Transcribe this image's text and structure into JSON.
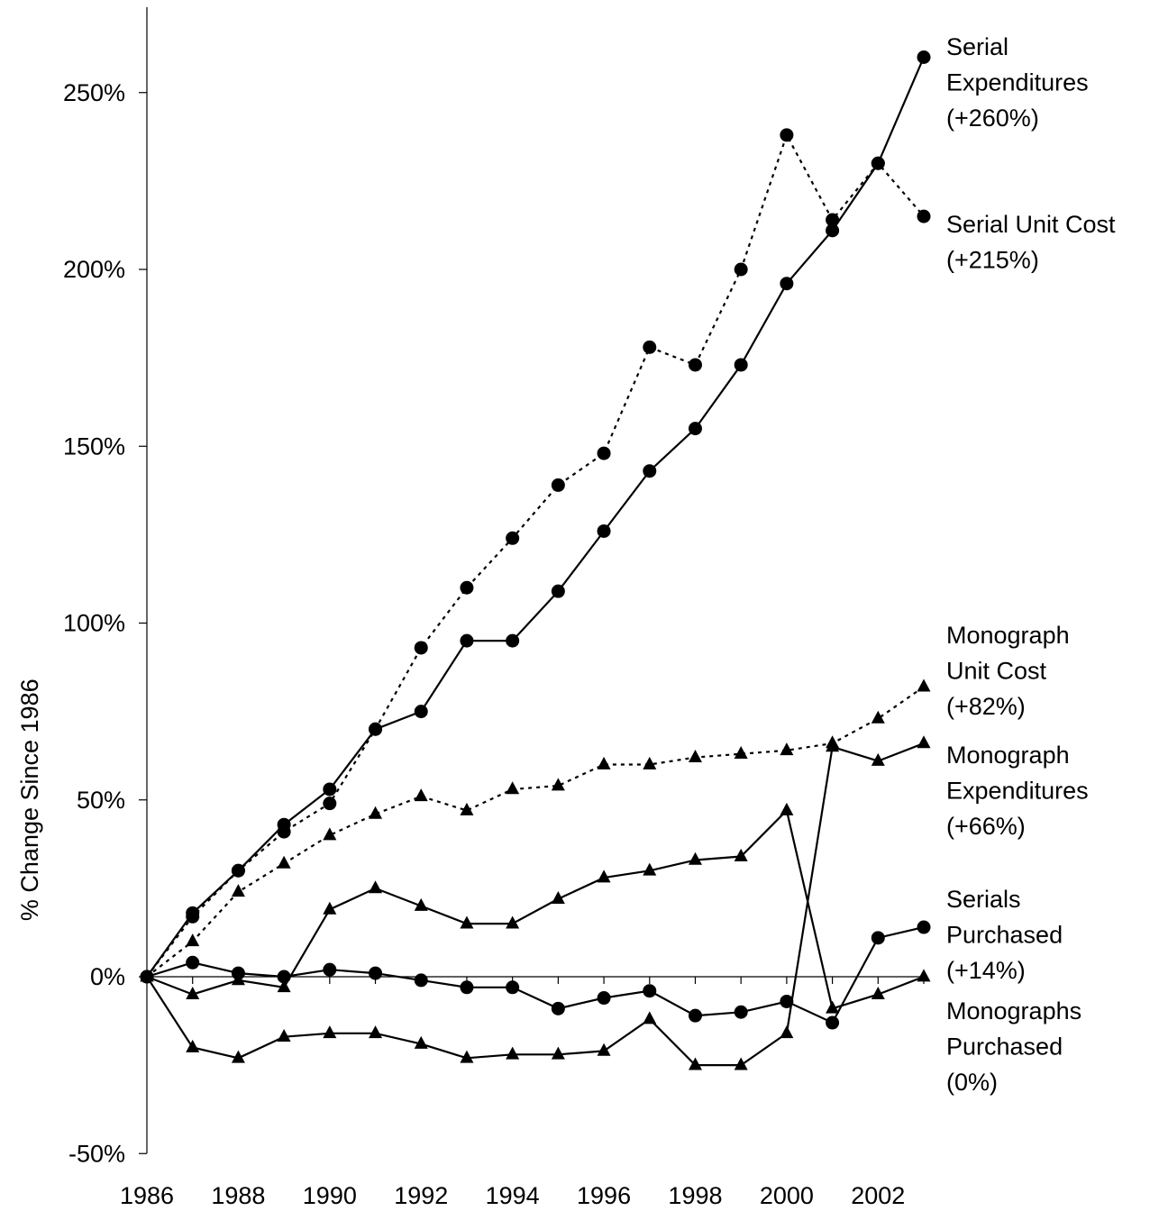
{
  "chart_data": {
    "type": "line",
    "ylabel": "% Change Since 1986",
    "xlabel": "",
    "x": [
      1986,
      1987,
      1988,
      1989,
      1990,
      1991,
      1992,
      1993,
      1994,
      1995,
      1996,
      1997,
      1998,
      1999,
      2000,
      2001,
      2002,
      2003
    ],
    "xlim": [
      1986,
      2003
    ],
    "ylim": [
      -50,
      270
    ],
    "x_ticks": [
      {
        "value": 1986,
        "label": "1986"
      },
      {
        "value": 1988,
        "label": "1988"
      },
      {
        "value": 1990,
        "label": "1990"
      },
      {
        "value": 1992,
        "label": "1992"
      },
      {
        "value": 1994,
        "label": "1994"
      },
      {
        "value": 1996,
        "label": "1996"
      },
      {
        "value": 1998,
        "label": "1998"
      },
      {
        "value": 2000,
        "label": "2000"
      },
      {
        "value": 2002,
        "label": "2002"
      }
    ],
    "y_ticks": [
      {
        "value": 250,
        "label": "250%"
      },
      {
        "value": 200,
        "label": "200%"
      },
      {
        "value": 150,
        "label": "150%"
      },
      {
        "value": 100,
        "label": "100%"
      },
      {
        "value": 50,
        "label": "50%"
      },
      {
        "value": 0,
        "label": "0%"
      },
      {
        "value": -50,
        "label": "-50%"
      }
    ],
    "grid": false,
    "legend": "inline-right",
    "series": [
      {
        "name": "Serial Expenditures (+260%)",
        "label_lines": [
          "Serial",
          "Expenditures",
          "(+260%)"
        ],
        "marker": "circle",
        "line": "solid",
        "label_anchor_value": 260,
        "values": [
          0,
          18,
          30,
          43,
          53,
          70,
          75,
          95,
          95,
          109,
          126,
          143,
          155,
          173,
          196,
          211,
          230,
          260
        ]
      },
      {
        "name": "Serial Unit Cost (+215%)",
        "label_lines": [
          "Serial Unit Cost",
          "(+215%)"
        ],
        "marker": "circle",
        "line": "dotted",
        "label_anchor_value": 215,
        "values": [
          0,
          17,
          30,
          41,
          49,
          70,
          93,
          110,
          124,
          139,
          148,
          178,
          173,
          200,
          238,
          214,
          230,
          215
        ]
      },
      {
        "name": "Monograph Unit Cost (+82%)",
        "label_lines": [
          "Monograph",
          "Unit Cost",
          "(+82%)"
        ],
        "marker": "triangle",
        "line": "dotted",
        "label_anchor_value": 82,
        "values": [
          0,
          10,
          24,
          32,
          40,
          46,
          51,
          47,
          53,
          54,
          60,
          60,
          62,
          63,
          64,
          66,
          73,
          82
        ]
      },
      {
        "name": "Monograph Expenditures (+66%)",
        "label_lines": [
          "Monograph",
          "Expenditures",
          "(+66%)"
        ],
        "marker": "triangle",
        "line": "solid",
        "label_anchor_value": 66,
        "values": [
          0,
          -20,
          -23,
          -17,
          -16,
          -16,
          -19,
          -23,
          -22,
          -22,
          -21,
          -12,
          -25,
          -25,
          -16,
          65,
          61,
          66
        ]
      },
      {
        "name": "Serials Purchased (+14%)",
        "label_lines": [
          "Serials",
          "Purchased",
          "(+14%)"
        ],
        "marker": "circle",
        "line": "solid",
        "label_anchor_value": 14,
        "values": [
          0,
          4,
          1,
          0,
          2,
          1,
          -1,
          -3,
          -3,
          -9,
          -6,
          -4,
          -11,
          -10,
          -7,
          -13,
          11,
          14
        ]
      },
      {
        "name": "Monographs Purchased (0%)",
        "label_lines": [
          "Monographs",
          "Purchased",
          "(0%)"
        ],
        "marker": "triangle",
        "line": "solid",
        "label_anchor_value": 0,
        "values": [
          0,
          -5,
          -1,
          -3,
          19,
          25,
          20,
          15,
          15,
          22,
          28,
          30,
          33,
          34,
          47,
          -9,
          -5,
          0
        ]
      }
    ]
  }
}
